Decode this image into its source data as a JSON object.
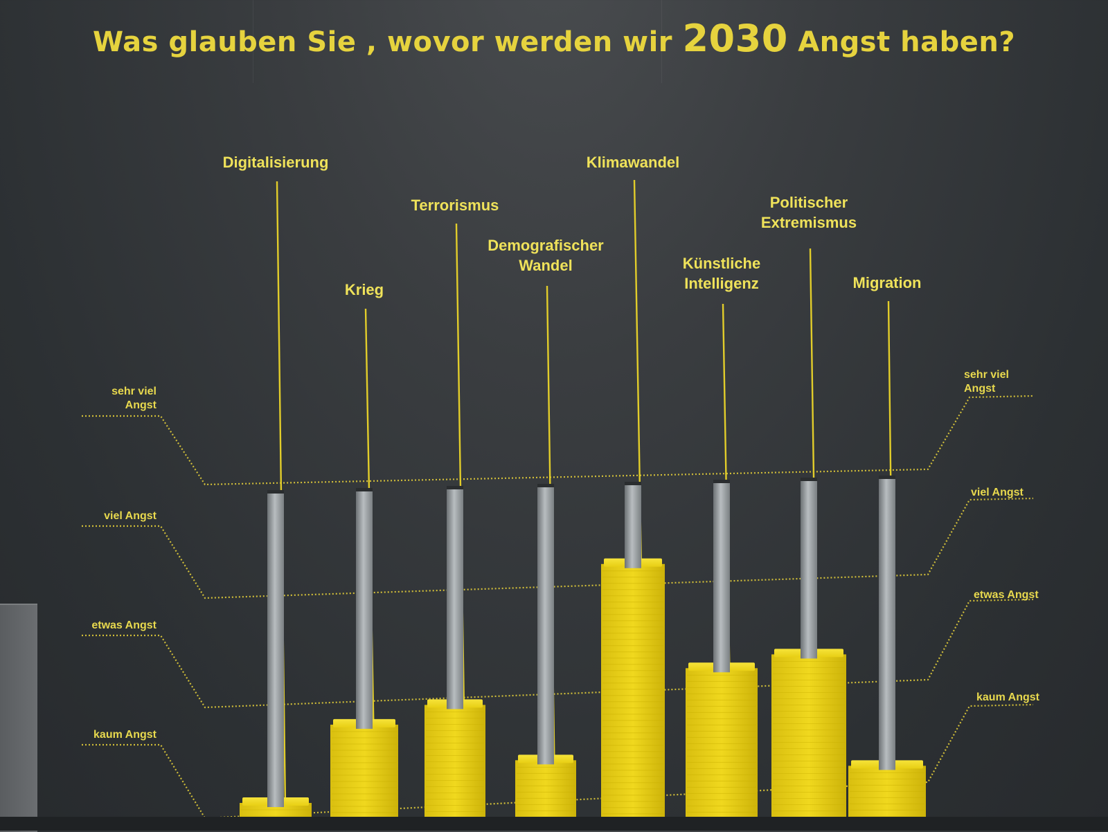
{
  "title": {
    "part1": "Was glauben Sie , wovor werden wir",
    "year": "2030",
    "part2": "Angst haben?"
  },
  "colors": {
    "text": "#e6d33e",
    "pole_line": "#e2cd2a",
    "block": "#e6cf16",
    "block_dark": "#c9b000",
    "rod": "#9ea3a6",
    "wall": "#303437"
  },
  "scale": {
    "levels": [
      "kaum Angst",
      "etwas Angst",
      "viel Angst",
      "sehr viel Angst"
    ],
    "left_labels": [
      "sehr viel\nAngst",
      "viel Angst",
      "etwas Angst",
      "kaum Angst"
    ],
    "right_labels": [
      "sehr viel\nAngst",
      "viel Angst",
      "etwas Angst",
      "kaum Angst"
    ]
  },
  "categories": [
    {
      "label": "Digitalisierung",
      "level": 0.1
    },
    {
      "label": "Krieg",
      "level": 0.9
    },
    {
      "label": "Terrorismus",
      "level": 1.05
    },
    {
      "label": "Demografischer\nWandel",
      "level": 0.5
    },
    {
      "label": "Klimawandel",
      "level": 2.3
    },
    {
      "label": "Künstliche\nIntelligenz",
      "level": 1.3
    },
    {
      "label": "Politischer\nExtremismus",
      "level": 1.4
    },
    {
      "label": "Migration",
      "level": 0.3
    }
  ]
}
